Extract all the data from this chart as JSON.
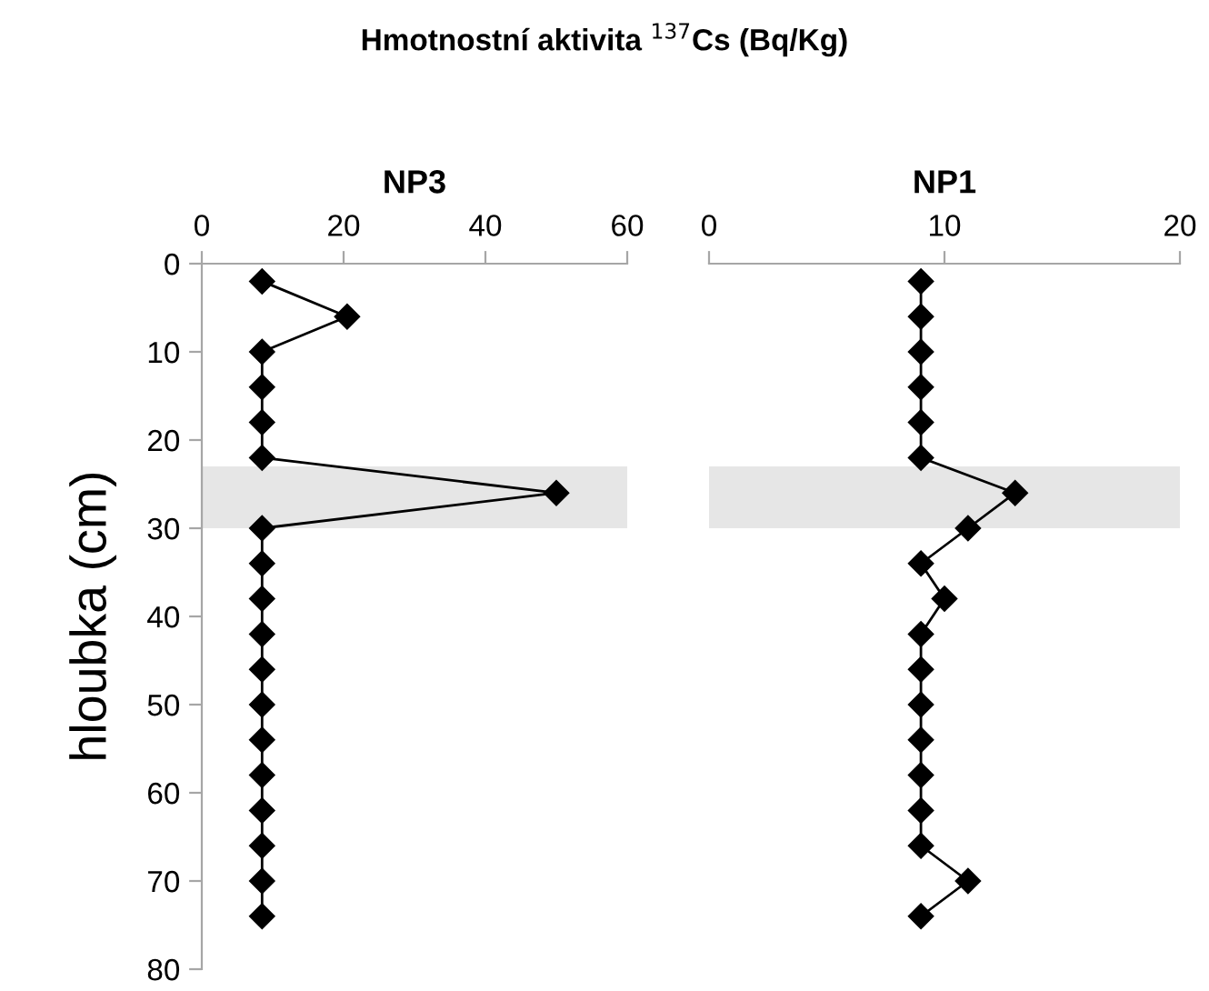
{
  "chart_data": [
    {
      "type": "line",
      "title": "NP3",
      "xlabel": "Hmotnostní aktivita $^{137}$Cs (Bq/Kg)",
      "ylabel": "hloubka (cm)",
      "xlim": [
        0,
        60
      ],
      "xticks": [
        0,
        20,
        40,
        60
      ],
      "ylim": [
        80,
        0
      ],
      "yticks": [
        0,
        10,
        20,
        30,
        40,
        50,
        60,
        70,
        80
      ],
      "grid": false,
      "marker": "diamond",
      "line_style": "solid",
      "bands": [
        {
          "axis": "y",
          "from": 23,
          "to": 30,
          "color": "#e6e6e6"
        }
      ],
      "series": [
        {
          "color": "#000000",
          "x": [
            8.5,
            20.5,
            8.5,
            8.5,
            8.5,
            8.5,
            50,
            8.5,
            8.5,
            8.5,
            8.5,
            8.5,
            8.5,
            8.5,
            8.5,
            8.5,
            8.5,
            8.5,
            8.5
          ],
          "values": [
            2,
            6,
            10,
            14,
            18,
            22,
            26,
            30,
            34,
            38,
            42,
            46,
            50,
            54,
            58,
            62,
            66,
            70,
            74
          ]
        }
      ]
    },
    {
      "type": "line",
      "title": "NP1",
      "xlim": [
        0,
        20
      ],
      "xticks": [
        0,
        10,
        20
      ],
      "ylim": [
        80,
        0
      ],
      "tick_labels": "x",
      "grid": false,
      "marker": "diamond",
      "line_style": "solid",
      "bands": [
        {
          "axis": "y",
          "from": 23,
          "to": 30,
          "color": "#e6e6e6"
        }
      ],
      "series": [
        {
          "color": "#000000",
          "x": [
            9,
            9,
            9,
            9,
            9,
            9,
            13,
            11,
            9,
            10,
            9,
            9,
            9,
            9,
            9,
            9,
            9,
            11,
            9
          ],
          "values": [
            2,
            6,
            10,
            14,
            18,
            22,
            26,
            30,
            34,
            38,
            42,
            46,
            50,
            54,
            58,
            62,
            66,
            70,
            74
          ]
        }
      ]
    }
  ]
}
